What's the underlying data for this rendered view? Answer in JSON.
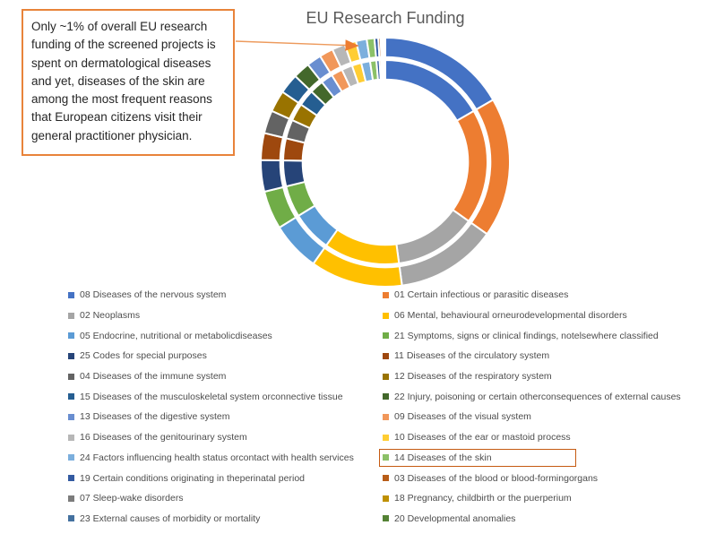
{
  "title": "EU Research Funding",
  "callout": {
    "text": "Only ~1% of overall EU research funding of the screened projects is spent on dermatological diseases and yet, diseases of the skin are among the most frequent reasons that European citizens visit their general practitioner physician.",
    "border_color": "#E8833A",
    "arrow_color": "#ED7D31",
    "arrow_points_to": "14 Diseases of the skin"
  },
  "highlight": {
    "label": "14 Diseases of the skin",
    "box_color": "#C55A11"
  },
  "chart_data": {
    "type": "donut",
    "title": "EU Research Funding",
    "rings": [
      "outer",
      "inner"
    ],
    "rings_note": "two concentric rings with matching category proportions",
    "start_angle_deg": 0,
    "legend_position": "bottom-two-columns",
    "series": [
      {
        "id": "08",
        "label": "08 Diseases of the nervous system",
        "color": "#4472C4",
        "value_pct": 16.7
      },
      {
        "id": "01",
        "label": "01 Certain infectious or parasitic diseases",
        "color": "#ED7D31",
        "value_pct": 18.2
      },
      {
        "id": "02",
        "label": "02 Neoplasms",
        "color": "#A5A5A5",
        "value_pct": 13.1
      },
      {
        "id": "06",
        "label": "06 Mental, behavioural orneurodevelopmental disorders",
        "color": "#FFC000",
        "value_pct": 12.0
      },
      {
        "id": "05",
        "label": "05 Endocrine, nutritional or metabolicdiseases",
        "color": "#5B9BD5",
        "value_pct": 6.4
      },
      {
        "id": "21",
        "label": "21 Symptoms, signs or clinical findings, notelsewhere classified",
        "color": "#70AD47",
        "value_pct": 5.0
      },
      {
        "id": "25",
        "label": "25 Codes for special purposes",
        "color": "#264478",
        "value_pct": 4.1
      },
      {
        "id": "11",
        "label": "11 Diseases of the circulatory system",
        "color": "#9E480E",
        "value_pct": 3.5
      },
      {
        "id": "04",
        "label": "04 Diseases of the immune system",
        "color": "#636363",
        "value_pct": 3.0
      },
      {
        "id": "12",
        "label": "12 Diseases of the respiratory system",
        "color": "#997300",
        "value_pct": 2.8
      },
      {
        "id": "15",
        "label": "15 Diseases of the musculoskeletal system orconnective tissue",
        "color": "#255E91",
        "value_pct": 2.6
      },
      {
        "id": "22",
        "label": "22 Injury, poisoning or certain otherconsequences of external causes",
        "color": "#43682B",
        "value_pct": 2.2
      },
      {
        "id": "13",
        "label": "13 Diseases of the digestive system",
        "color": "#698ED0",
        "value_pct": 1.9
      },
      {
        "id": "09",
        "label": "09 Diseases of the visual system",
        "color": "#F1975A",
        "value_pct": 1.8
      },
      {
        "id": "16",
        "label": "16 Diseases of the genitourinary system",
        "color": "#B7B7B7",
        "value_pct": 1.7
      },
      {
        "id": "10",
        "label": "10 Diseases of the ear or mastoid process",
        "color": "#FFCD33",
        "value_pct": 1.5
      },
      {
        "id": "24",
        "label": "24 Factors influencing health status orcontact with health services",
        "color": "#7CAFDD",
        "value_pct": 1.4
      },
      {
        "id": "14",
        "label": "14 Diseases of the skin",
        "color": "#8CC168",
        "value_pct": 1.0,
        "highlighted": true
      },
      {
        "id": "19",
        "label": "19 Certain conditions originating in theperinatal period",
        "color": "#335AA1",
        "value_pct": 0.5
      },
      {
        "id": "03",
        "label": "03 Diseases of the blood or blood-formingorgans",
        "color": "#B85D18",
        "value_pct": 0.3
      },
      {
        "id": "07",
        "label": "07 Sleep-wake disorders",
        "color": "#7C7C7C",
        "value_pct": 0.15
      },
      {
        "id": "18",
        "label": "18 Pregnancy, childbirth or the puerperium",
        "color": "#BF9000",
        "value_pct": 0.15
      },
      {
        "id": "23",
        "label": "23 External causes of morbidity or mortality",
        "color": "#44719F",
        "value_pct": 0.15
      },
      {
        "id": "20",
        "label": "20 Developmental anomalies",
        "color": "#548235",
        "value_pct": 0.15
      }
    ]
  }
}
